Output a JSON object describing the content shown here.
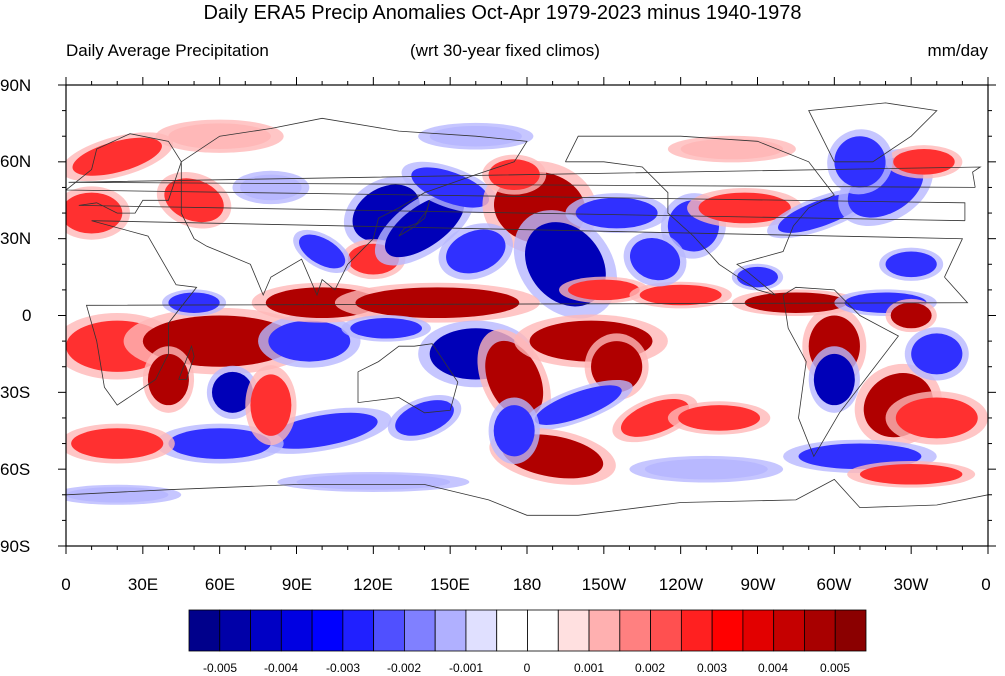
{
  "title": "Daily ERA5 Precip Anomalies Oct-Apr 1979-2023 minus 1940-1978",
  "left_string": "Daily Average Precipitation",
  "center_string": "(wrt 30-year fixed climos)",
  "right_string": "mm/day",
  "latitude_labels": [
    "90N",
    "60N",
    "30N",
    "0",
    "30S",
    "60S",
    "90S"
  ],
  "longitude_labels": [
    "0",
    "30E",
    "60E",
    "90E",
    "120E",
    "150E",
    "180",
    "150W",
    "120W",
    "90W",
    "60W",
    "30W",
    "0"
  ],
  "colorbar": {
    "colors": [
      "#00008b",
      "#0000a8",
      "#0000c5",
      "#0000e2",
      "#0000ff",
      "#2020ff",
      "#5050ff",
      "#8080ff",
      "#b0b0ff",
      "#e0e0ff",
      "#ffffff",
      "#ffffff",
      "#ffe0e0",
      "#ffb0b0",
      "#ff8080",
      "#ff5050",
      "#ff2020",
      "#ff0000",
      "#e20000",
      "#c50000",
      "#a80000",
      "#8b0000"
    ],
    "tick_labels": [
      "-0.005",
      "-0.004",
      "-0.003",
      "-0.002",
      "-0.001",
      "0",
      "0.001",
      "0.002",
      "0.003",
      "0.004",
      "0.005"
    ]
  },
  "colors": {
    "strong_positive": "#b00000",
    "positive": "#ff3030",
    "weak_positive": "#ffb8b8",
    "strong_negative": "#0000b8",
    "negative": "#3030ff",
    "weak_negative": "#b8b8ff",
    "coastline": "#333333"
  }
}
